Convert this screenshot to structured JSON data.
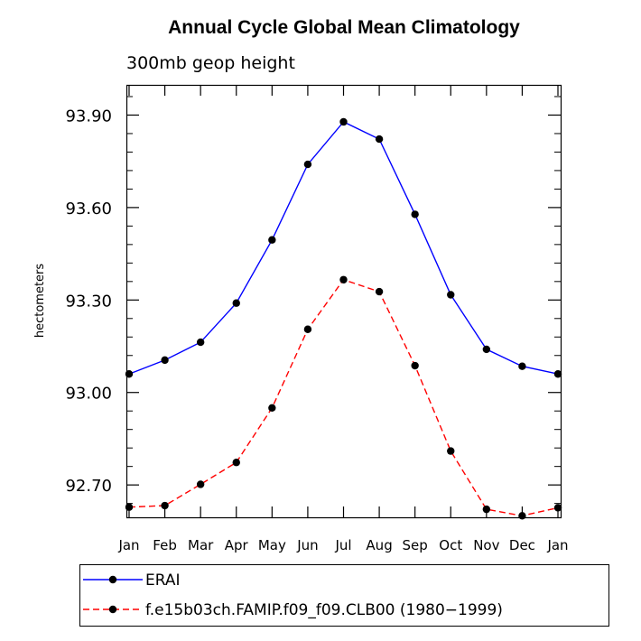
{
  "chart_data": {
    "type": "line",
    "title": "Annual Cycle Global Mean Climatology",
    "subtitle": "300mb geop height",
    "xlabel": "",
    "ylabel": "hectometers",
    "categories": [
      "Jan",
      "Feb",
      "Mar",
      "Apr",
      "May",
      "Jun",
      "Jul",
      "Aug",
      "Sep",
      "Oct",
      "Nov",
      "Dec",
      "Jan"
    ],
    "y_ticks": [
      "92.70",
      "93.00",
      "93.30",
      "93.60",
      "93.90"
    ],
    "y_tick_values": [
      92.7,
      93.0,
      93.3,
      93.6,
      93.9
    ],
    "ylim": [
      92.595,
      93.998
    ],
    "series": [
      {
        "name": "ERAI",
        "color": "#0000ff",
        "line_style": "solid",
        "values": [
          93.06,
          93.105,
          93.163,
          93.29,
          93.495,
          93.74,
          93.878,
          93.822,
          93.578,
          93.317,
          93.14,
          93.085,
          93.06
        ]
      },
      {
        "name": "f.e15b03ch.FAMIP.f09_f09.CLB00 (1980−1999)",
        "color": "#ff0000",
        "line_style": "dashed",
        "values": [
          92.628,
          92.633,
          92.702,
          92.773,
          92.95,
          93.205,
          93.366,
          93.327,
          93.087,
          92.81,
          92.621,
          92.6,
          92.626
        ]
      }
    ],
    "legend_position": "bottom",
    "grid": false
  }
}
